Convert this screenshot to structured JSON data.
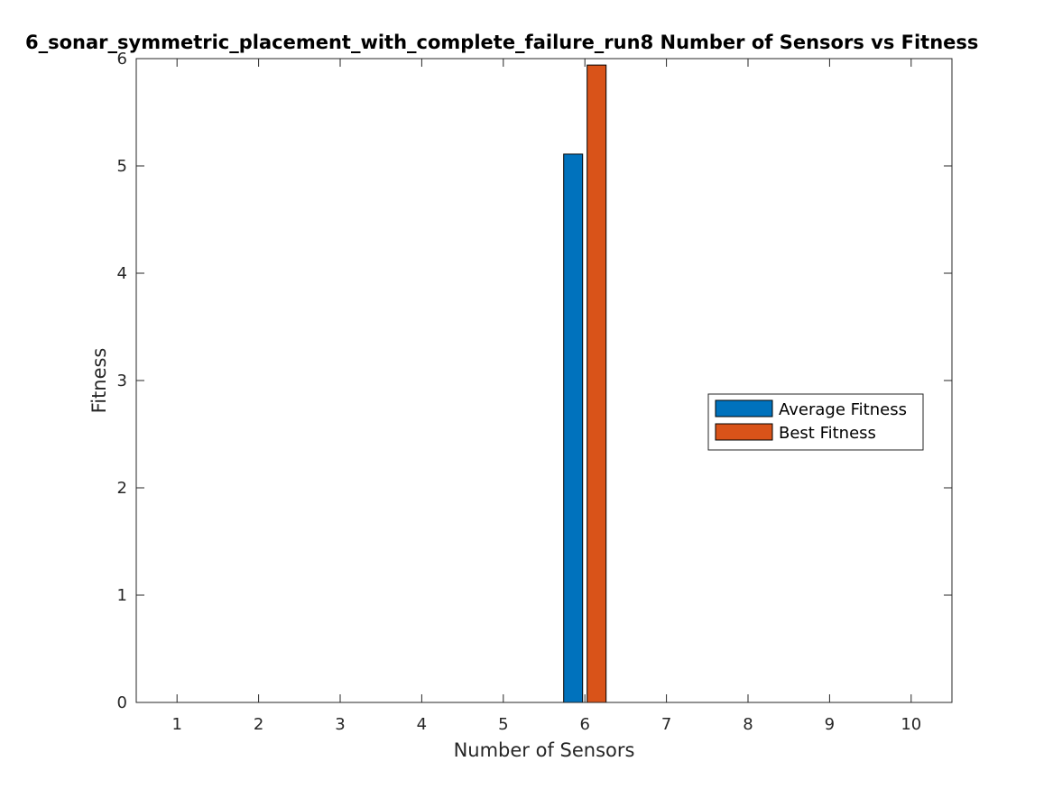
{
  "chart_data": {
    "type": "bar",
    "title": "6_sonar_symmetric_placement_with_complete_failure_run8 Number of Sensors vs Fitness",
    "xlabel": "Number of Sensors",
    "ylabel": "Fitness",
    "categories": [
      "1",
      "2",
      "3",
      "4",
      "5",
      "6",
      "7",
      "8",
      "9",
      "10"
    ],
    "x": [
      1,
      2,
      3,
      4,
      5,
      6,
      7,
      8,
      9,
      10
    ],
    "xlim": [
      0.5,
      10.5
    ],
    "ylim": [
      0,
      6
    ],
    "yticks": [
      "0",
      "1",
      "2",
      "3",
      "4",
      "5",
      "6"
    ],
    "grid": false,
    "legend_position": "right",
    "series": [
      {
        "name": "Average Fitness",
        "color": "#0072BD",
        "values": [
          0,
          0,
          0,
          0,
          0,
          5.11,
          0,
          0,
          0,
          0
        ]
      },
      {
        "name": "Best Fitness",
        "color": "#D95319",
        "values": [
          0,
          0,
          0,
          0,
          0,
          5.94,
          0,
          0,
          0,
          0
        ]
      }
    ]
  }
}
